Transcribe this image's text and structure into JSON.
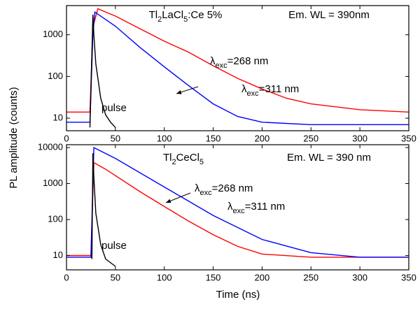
{
  "chart_data": [
    {
      "type": "line",
      "ylabel": "PL amplitude (counts)",
      "ylog": true,
      "xlim": [
        0,
        350
      ],
      "xticks": [
        0,
        50,
        100,
        150,
        200,
        250,
        300,
        350
      ],
      "ylim": [
        5,
        5000
      ],
      "yticks": [
        10,
        100,
        1000
      ],
      "annotations": [
        {
          "parts": [
            {
              "text": "Tl"
            },
            {
              "text": "2",
              "sub": true
            },
            {
              "text": "LaCl"
            },
            {
              "text": "5",
              "sub": true
            },
            {
              "text": ":Ce 5%"
            }
          ]
        },
        {
          "parts": [
            {
              "text": "Em. WL = 390nm"
            }
          ]
        },
        {
          "parts": [
            {
              "text": "λ"
            },
            {
              "text": "exc",
              "sub": true
            },
            {
              "text": "=268 nm"
            }
          ]
        },
        {
          "parts": [
            {
              "text": "λ"
            },
            {
              "text": "exc",
              "sub": true
            },
            {
              "text": "=311 nm"
            }
          ]
        }
      ],
      "series": [
        {
          "color": "#ff0000",
          "x": [
            0,
            24,
            27,
            32,
            50,
            75,
            100,
            125,
            150,
            175,
            200,
            225,
            250,
            300,
            350
          ],
          "values": [
            14,
            14,
            1500,
            4200,
            2800,
            1400,
            700,
            380,
            180,
            90,
            50,
            30,
            22,
            16,
            14
          ]
        },
        {
          "color": "#0000ff",
          "x": [
            0,
            24,
            27,
            29,
            50,
            75,
            100,
            125,
            150,
            175,
            200,
            250,
            350
          ],
          "values": [
            8,
            8,
            1000,
            3500,
            1600,
            500,
            170,
            60,
            22,
            11,
            8,
            7,
            7
          ]
        },
        {
          "name": "pulse",
          "color": "#000000",
          "x": [
            24,
            27,
            28,
            30,
            35,
            40,
            45,
            50
          ],
          "values": [
            6,
            3000,
            1000,
            200,
            30,
            12,
            8,
            6
          ]
        }
      ]
    },
    {
      "type": "line",
      "xlabel": "Time (ns)",
      "ylog": true,
      "xlim": [
        0,
        350
      ],
      "xticks": [
        0,
        50,
        100,
        150,
        200,
        250,
        300,
        350
      ],
      "ylim": [
        4,
        12000
      ],
      "yticks": [
        10,
        100,
        1000,
        10000
      ],
      "annotations": [
        {
          "parts": [
            {
              "text": "Tl"
            },
            {
              "text": "2",
              "sub": true
            },
            {
              "text": "CeCl"
            },
            {
              "text": "5",
              "sub": true
            }
          ]
        },
        {
          "parts": [
            {
              "text": "Em. WL = 390 nm"
            }
          ]
        },
        {
          "parts": [
            {
              "text": "λ"
            },
            {
              "text": "exc",
              "sub": true
            },
            {
              "text": "=268 nm"
            }
          ]
        },
        {
          "parts": [
            {
              "text": "λ"
            },
            {
              "text": "exc",
              "sub": true
            },
            {
              "text": "=311 nm"
            }
          ]
        }
      ],
      "series": [
        {
          "color": "#ff0000",
          "x": [
            0,
            25,
            28,
            40,
            75,
            100,
            125,
            150,
            175,
            200,
            250,
            350
          ],
          "values": [
            10,
            10,
            3800,
            2500,
            600,
            230,
            90,
            38,
            18,
            11,
            9,
            9
          ]
        },
        {
          "color": "#0000ff",
          "x": [
            0,
            25,
            28,
            50,
            100,
            150,
            200,
            250,
            300,
            350
          ],
          "values": [
            9,
            9,
            10000,
            5000,
            800,
            130,
            28,
            12,
            9,
            9
          ]
        },
        {
          "name": "pulse",
          "color": "#000000",
          "x": [
            26,
            27,
            28,
            30,
            35,
            40,
            50
          ],
          "values": [
            8,
            7000,
            1500,
            150,
            20,
            8,
            5
          ]
        }
      ]
    }
  ]
}
